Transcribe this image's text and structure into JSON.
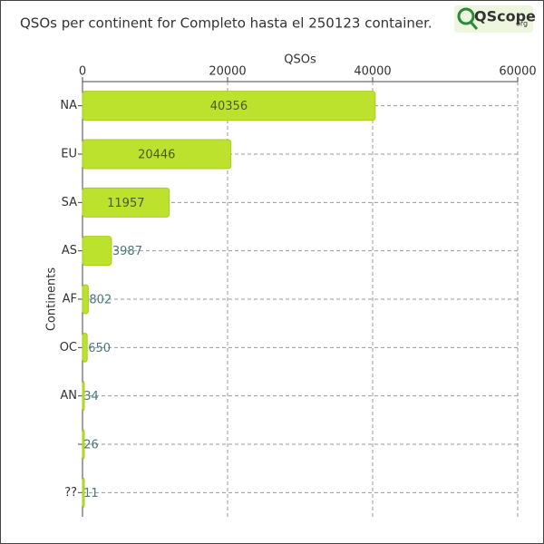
{
  "chart_data": {
    "type": "bar",
    "orientation": "horizontal",
    "title": "QSOs per continent for Completo hasta el 250123 container.",
    "logo": "QScope",
    "logo_suffix": "org",
    "x_label": "QSOs",
    "y_label": "Continents",
    "categories": [
      "NA",
      "EU",
      "SA",
      "AS",
      "AF",
      "OC",
      "AN",
      null,
      "??"
    ],
    "values": [
      40356,
      20446,
      11957,
      3987,
      802,
      650,
      34,
      26,
      11
    ],
    "color": "#bde22e",
    "xlim": [
      0,
      60000
    ],
    "xticks": [
      0,
      20000,
      40000,
      60000
    ],
    "grid": true
  }
}
